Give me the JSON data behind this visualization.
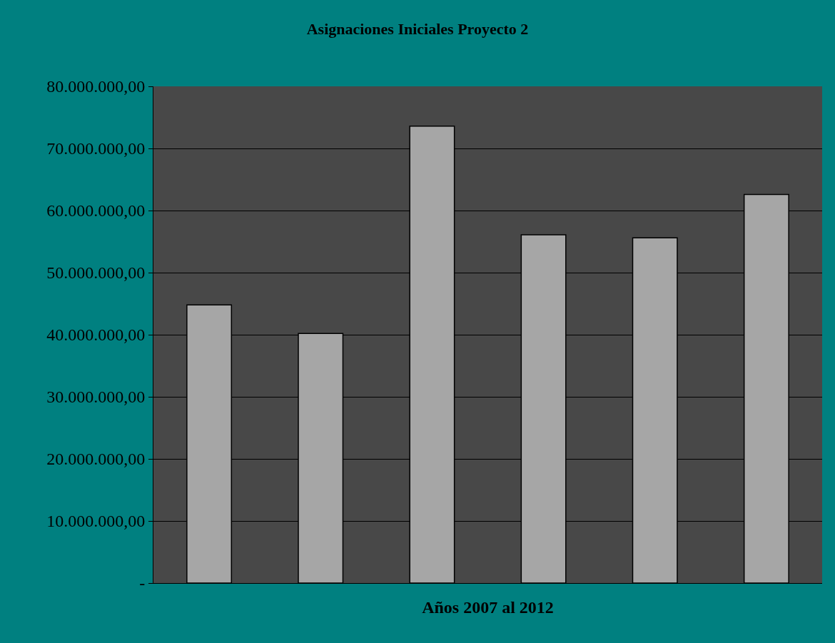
{
  "chart_data": {
    "type": "bar",
    "title": "Asignaciones Iniciales Proyecto 2",
    "xlabel": "Años 2007 al 2012",
    "categories": [
      null,
      null,
      null,
      null,
      null,
      null
    ],
    "values": [
      44800000,
      40200000,
      73600000,
      56100000,
      55600000,
      62600000
    ],
    "color": "#a6a6a6",
    "ylim": [
      0,
      80000000
    ],
    "yticks": [
      {
        "value": 0,
        "label": "-"
      },
      {
        "value": 10000000,
        "label": "10.000.000,00"
      },
      {
        "value": 20000000,
        "label": "20.000.000,00"
      },
      {
        "value": 30000000,
        "label": "30.000.000,00"
      },
      {
        "value": 40000000,
        "label": "40.000.000,00"
      },
      {
        "value": 50000000,
        "label": "50.000.000,00"
      },
      {
        "value": 60000000,
        "label": "60.000.000,00"
      },
      {
        "value": 70000000,
        "label": "70.000.000,00"
      },
      {
        "value": 80000000,
        "label": "80.000.000,00"
      }
    ],
    "grid": "y",
    "tick_labels": "y"
  }
}
